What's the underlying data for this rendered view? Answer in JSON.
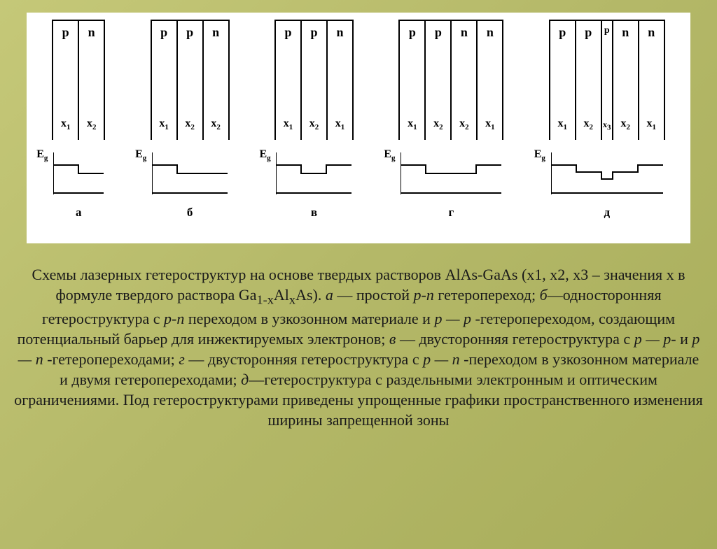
{
  "background_gradient": [
    "#c5c878",
    "#b4b868",
    "#a8ad5a"
  ],
  "panel_bg": "#ffffff",
  "stroke": "#000000",
  "stroke_width": 2,
  "layer_height": 170,
  "eg_label": "E",
  "eg_sub": "g",
  "structures": [
    {
      "key": "a",
      "label": "а",
      "layer_width": 35,
      "layers": [
        {
          "top": "p",
          "sub": "1"
        },
        {
          "top": "n",
          "sub": "2"
        }
      ],
      "eg": {
        "w": 72,
        "h": 60,
        "levels": [
          18,
          30
        ],
        "edges": [
          0,
          36,
          72
        ]
      }
    },
    {
      "key": "b",
      "label": "б",
      "layer_width": 35,
      "layers": [
        {
          "top": "p",
          "sub": "1"
        },
        {
          "top": "p",
          "sub": "2"
        },
        {
          "top": "n",
          "sub": "2"
        }
      ],
      "eg": {
        "w": 108,
        "h": 60,
        "levels": [
          18,
          30,
          30
        ],
        "edges": [
          0,
          36,
          72,
          108
        ]
      }
    },
    {
      "key": "v",
      "label": "в",
      "layer_width": 35,
      "layers": [
        {
          "top": "p",
          "sub": "1"
        },
        {
          "top": "p",
          "sub": "2"
        },
        {
          "top": "n",
          "sub": "1"
        }
      ],
      "eg": {
        "w": 108,
        "h": 60,
        "levels": [
          18,
          30,
          18
        ],
        "edges": [
          0,
          36,
          72,
          108
        ]
      }
    },
    {
      "key": "g",
      "label": "г",
      "layer_width": 35,
      "layers": [
        {
          "top": "p",
          "sub": "1"
        },
        {
          "top": "p",
          "sub": "2"
        },
        {
          "top": "n",
          "sub": "2"
        },
        {
          "top": "n",
          "sub": "1"
        }
      ],
      "eg": {
        "w": 144,
        "h": 60,
        "levels": [
          18,
          30,
          30,
          18
        ],
        "edges": [
          0,
          36,
          72,
          108,
          144
        ]
      }
    },
    {
      "key": "d",
      "label": "д",
      "layer_width": 35,
      "thin_index": 2,
      "layers": [
        {
          "top": "p",
          "sub": "1"
        },
        {
          "top": "p",
          "sub": "2"
        },
        {
          "top": "p",
          "sub": "3",
          "thin": true
        },
        {
          "top": "n",
          "sub": "2"
        },
        {
          "top": "n",
          "sub": "1"
        }
      ],
      "eg": {
        "w": 160,
        "h": 60,
        "levels": [
          18,
          28,
          38,
          28,
          18
        ],
        "edges": [
          0,
          36,
          72,
          88,
          124,
          160
        ]
      }
    }
  ],
  "caption": {
    "text_parts": [
      {
        "t": "Схемы лазерных гетероструктур на основе твердых растворов AlAs-GaAs (х1, х2, х3 – значения х в формуле твердого раствора Ga"
      },
      {
        "t": "1-x",
        "sub": true
      },
      {
        "t": "Al"
      },
      {
        "t": "x",
        "sub": true
      },
      {
        "t": "As). "
      },
      {
        "t": "а",
        "i": true
      },
      {
        "t": " — простой "
      },
      {
        "t": "p-n",
        "i": true
      },
      {
        "t": " гетеропереход; "
      },
      {
        "t": "б",
        "i": true
      },
      {
        "t": "—односторонняя гетероструктура с "
      },
      {
        "t": "р-n",
        "i": true
      },
      {
        "t": " переходом в узкозонном материале и "
      },
      {
        "t": "р — р",
        "i": true
      },
      {
        "t": " -гетеропереходом, создающим потенциальный барьер для инжектируемых электронов; "
      },
      {
        "t": "в",
        "i": true
      },
      {
        "t": " — двусторонняя гетероструктура с "
      },
      {
        "t": "р — р-",
        "i": true
      },
      {
        "t": " и "
      },
      {
        "t": "р — n",
        "i": true
      },
      {
        "t": " -гетеропереходами; "
      },
      {
        "t": "г",
        "i": true
      },
      {
        "t": " — двусторонняя гетероструктура с "
      },
      {
        "t": "р — n",
        "i": true
      },
      {
        "t": " -переходом в узкозонном материале и двумя гетеропереходами; "
      },
      {
        "t": "д",
        "i": true
      },
      {
        "t": "—гетероструктура с раздельными электронным и оптическим ограничениями. Под гетероструктурами приведены упрощенные графики пространственного изменения ширины запрещенной зоны"
      }
    ]
  }
}
